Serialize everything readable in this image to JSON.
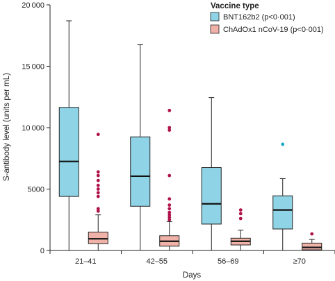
{
  "chart_data": {
    "type": "boxplot",
    "xlabel": "Days",
    "ylabel": "S-antibody level (units per mL)",
    "ylim": [
      0,
      20000
    ],
    "yticks": [
      0,
      5000,
      10000,
      15000,
      20000
    ],
    "ytick_labels": [
      "0",
      "5000",
      "10 000",
      "15 000",
      "20 000"
    ],
    "categories": [
      "21–41",
      "42–55",
      "56–69",
      "≥70"
    ],
    "legend": {
      "title": "Vaccine type",
      "position": "top-right"
    },
    "series": [
      {
        "name": "BNT162b2 (p<0·001)",
        "color": "#8fd4e6",
        "outlier_color": "#17a8c4",
        "boxes": [
          {
            "min": 0,
            "q1": 4400,
            "median": 7250,
            "q3": 11650,
            "max": 18700,
            "outliers": []
          },
          {
            "min": 0,
            "q1": 3600,
            "median": 6050,
            "q3": 9250,
            "max": 16750,
            "outliers": []
          },
          {
            "min": 0,
            "q1": 2150,
            "median": 3800,
            "q3": 6750,
            "max": 12450,
            "outliers": []
          },
          {
            "min": 0,
            "q1": 1750,
            "median": 3300,
            "q3": 4450,
            "max": 5850,
            "outliers": [
              8650
            ]
          }
        ]
      },
      {
        "name": "ChAdOx1 nCoV-19 (p<0·001)",
        "color": "#f0b2a8",
        "outlier_color": "#b0124a",
        "boxes": [
          {
            "min": 0,
            "q1": 550,
            "median": 950,
            "q3": 1500,
            "max": 2900,
            "outliers": [
              3200,
              3400,
              4400,
              4700,
              5000,
              5300,
              5700,
              6100,
              6400,
              9450
            ]
          },
          {
            "min": 0,
            "q1": 350,
            "median": 750,
            "q3": 1200,
            "max": 2350,
            "outliers": [
              2500,
              2700,
              2900,
              3100,
              3400,
              3700,
              4200,
              6100,
              9800,
              10000,
              11400
            ]
          },
          {
            "min": 0,
            "q1": 450,
            "median": 750,
            "q3": 1000,
            "max": 1650,
            "outliers": [
              2600,
              3000,
              3300
            ]
          },
          {
            "min": 0,
            "q1": 50,
            "median": 250,
            "q3": 600,
            "max": 900,
            "outliers": [
              1350
            ]
          }
        ]
      }
    ]
  }
}
